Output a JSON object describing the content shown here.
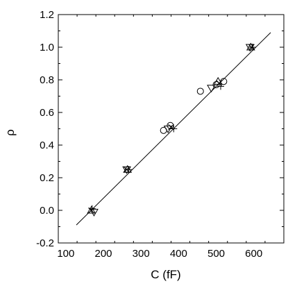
{
  "chart_data": {
    "type": "scatter",
    "title": "",
    "xlabel": "C (fF)",
    "ylabel": "ρ",
    "xlim": [
      80,
      680
    ],
    "ylim": [
      -0.2,
      1.2
    ],
    "xticks": [
      100,
      200,
      300,
      400,
      500,
      600
    ],
    "yticks": [
      -0.2,
      0.0,
      0.2,
      0.4,
      0.6,
      0.8,
      1.0,
      1.2
    ],
    "grid": false,
    "legend": "none",
    "fit_line": {
      "x": [
        128,
        645
      ],
      "y": [
        -0.09,
        1.09
      ]
    },
    "series": [
      {
        "marker": "circle",
        "points": [
          [
            360,
            0.49
          ],
          [
            378,
            0.52
          ],
          [
            458,
            0.73
          ],
          [
            500,
            0.77
          ],
          [
            520,
            0.79
          ]
        ]
      },
      {
        "marker": "triangle-down",
        "points": [
          [
            175,
            -0.01
          ],
          [
            262,
            0.25
          ],
          [
            372,
            0.5
          ],
          [
            487,
            0.75
          ],
          [
            590,
            1.0
          ]
        ]
      },
      {
        "marker": "triangle-up",
        "points": [
          [
            168,
            0.0
          ],
          [
            264,
            0.25
          ],
          [
            505,
            0.79
          ],
          [
            592,
            1.0
          ]
        ]
      },
      {
        "marker": "plus",
        "points": [
          [
            170,
            0.01
          ],
          [
            267,
            0.25
          ],
          [
            387,
            0.5
          ],
          [
            512,
            0.76
          ],
          [
            597,
            1.0
          ]
        ]
      },
      {
        "marker": "x",
        "points": [
          [
            168,
            0.0
          ],
          [
            262,
            0.25
          ],
          [
            380,
            0.51
          ],
          [
            508,
            0.78
          ],
          [
            594,
            1.0
          ]
        ]
      }
    ]
  }
}
